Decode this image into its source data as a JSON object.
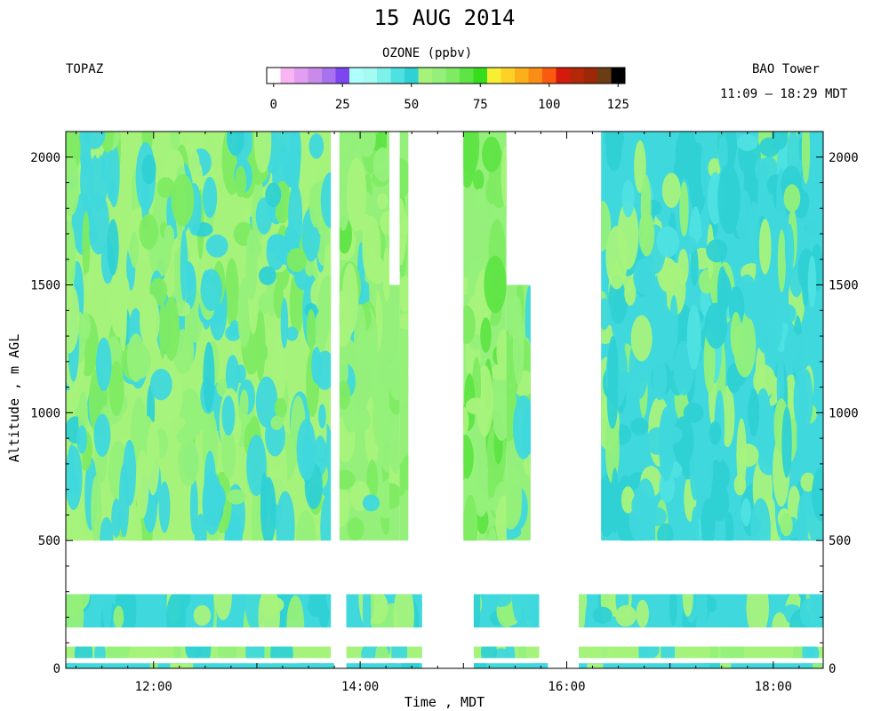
{
  "title": "15 AUG 2014",
  "instrument": "TOPAZ",
  "location": "BAO Tower",
  "time_range": "11:09 – 18:29 MDT",
  "colorbar": {
    "title": "OZONE (ppbv)",
    "ticks": [
      "0",
      "25",
      "50",
      "75",
      "100",
      "125"
    ],
    "colors": [
      "#ffffff",
      "#f9b4f2",
      "#e29ef0",
      "#c98ae9",
      "#a872ef",
      "#7d47f0",
      "#adfefd",
      "#a4fbf2",
      "#7ef2ea",
      "#4fe1e1",
      "#2fd1d4",
      "#a6f37c",
      "#94f07a",
      "#7eeb62",
      "#5ee444",
      "#35dd1c",
      "#f7ef33",
      "#fdd128",
      "#fbb01b",
      "#f98d16",
      "#fa5a10",
      "#d41a0d",
      "#b52807",
      "#9d2808",
      "#6a3d13",
      "#000000"
    ]
  },
  "chart_data": {
    "type": "heatmap",
    "title": "15 AUG 2014",
    "xlabel": "Time , MDT",
    "ylabel": "Altitude , m AGL",
    "x_ticks": [
      "12:00",
      "14:00",
      "16:00",
      "18:00"
    ],
    "y_ticks": [
      "0",
      "500",
      "1000",
      "1500",
      "2000"
    ],
    "xlim": [
      "11:09",
      "18:29"
    ],
    "ylim": [
      0,
      2100
    ],
    "variable": "Ozone (ppbv)",
    "zlim": [
      0,
      125
    ],
    "segments": [
      {
        "start": "11:09",
        "end": "13:43",
        "alt_top": 2100,
        "ozone_range": [
          40,
          60
        ],
        "typical": 52
      },
      {
        "start": "13:48",
        "end": "14:17",
        "alt_top": 2100,
        "ozone_range": [
          50,
          65
        ],
        "typical": 57
      },
      {
        "start": "14:17",
        "end": "14:23",
        "alt_top": 1500,
        "ozone_range": [
          50,
          65
        ],
        "typical": 57
      },
      {
        "start": "14:23",
        "end": "14:28",
        "alt_top": 2100,
        "ozone_range": [
          50,
          65
        ],
        "typical": 57
      },
      {
        "start": "15:00",
        "end": "15:25",
        "alt_top": 2100,
        "ozone_range": [
          50,
          65
        ],
        "typical": 58
      },
      {
        "start": "15:25",
        "end": "15:39",
        "alt_top": 1500,
        "ozone_range": [
          50,
          65
        ],
        "typical": 55
      },
      {
        "start": "16:20",
        "end": "18:29",
        "alt_top": 2100,
        "ozone_range": [
          35,
          55
        ],
        "typical": 46
      }
    ],
    "lower_levels": [
      {
        "alt_range": [
          160,
          290
        ],
        "periods": [
          [
            "11:09",
            "13:43"
          ],
          [
            "13:52",
            "14:36"
          ],
          [
            "15:06",
            "15:44"
          ],
          [
            "16:07",
            "18:29"
          ]
        ],
        "typical": 48
      },
      {
        "alt_range": [
          40,
          85
        ],
        "periods": [
          [
            "11:09",
            "13:43"
          ],
          [
            "13:52",
            "14:36"
          ],
          [
            "15:06",
            "15:44"
          ],
          [
            "16:07",
            "18:29"
          ]
        ],
        "typical": 50
      },
      {
        "alt_range": [
          0,
          20
        ],
        "periods": [
          [
            "11:09",
            "13:45"
          ],
          [
            "13:52",
            "14:36"
          ],
          [
            "15:06",
            "15:49"
          ],
          [
            "16:07",
            "18:29"
          ]
        ],
        "typical": 47
      }
    ]
  }
}
